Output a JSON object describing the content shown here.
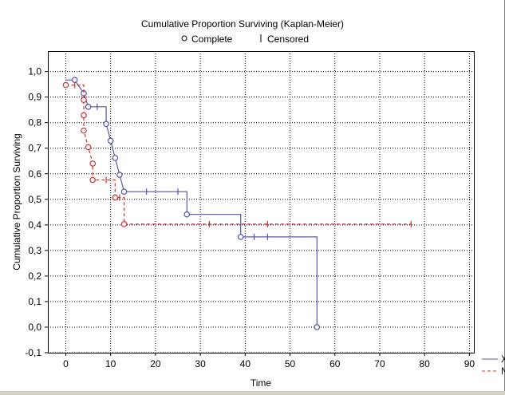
{
  "chart_data": {
    "type": "line",
    "title": "Cumulative Proportion Surviving (Kaplan-Meier)",
    "legend": [
      "Complete",
      "Censored"
    ],
    "xlabel": "Time",
    "ylabel": "Cumulative Proportion Surviving",
    "xlim": [
      -4,
      91
    ],
    "ylim": [
      -0.1,
      1.08
    ],
    "x_ticks": [
      0,
      10,
      20,
      30,
      40,
      50,
      60,
      70,
      80,
      90
    ],
    "y_ticks": [
      -0.1,
      0.0,
      0.1,
      0.2,
      0.3,
      0.4,
      0.5,
      0.6,
      0.7,
      0.8,
      0.9,
      1.0
    ],
    "x_tick_labels": [
      "0",
      "10",
      "20",
      "30",
      "40",
      "50",
      "60",
      "70",
      "80",
      "90"
    ],
    "y_tick_labels": [
      "-0,1",
      "0,0",
      "0,1",
      "0,2",
      "0,3",
      "0,4",
      "0,5",
      "0,6",
      "0,7",
      "0,8",
      "0,9",
      "1,0"
    ],
    "grid": true,
    "series": [
      {
        "color": "#5555aa",
        "dash": "none",
        "steps": [
          [
            0,
            0.967
          ],
          [
            2,
            0.967
          ],
          [
            4,
            0.915
          ],
          [
            5,
            0.862
          ],
          [
            9,
            0.862
          ],
          [
            9,
            0.795
          ],
          [
            10,
            0.729
          ],
          [
            11,
            0.662
          ],
          [
            12,
            0.596
          ],
          [
            13,
            0.53
          ],
          [
            27,
            0.53
          ],
          [
            27,
            0.441
          ],
          [
            39,
            0.441
          ],
          [
            39,
            0.353
          ],
          [
            56,
            0.353
          ],
          [
            56,
            0.0
          ]
        ],
        "complete": [
          [
            2,
            0.967
          ],
          [
            4,
            0.915
          ],
          [
            5,
            0.862
          ],
          [
            9,
            0.795
          ],
          [
            10,
            0.729
          ],
          [
            11,
            0.662
          ],
          [
            12,
            0.596
          ],
          [
            13,
            0.53
          ],
          [
            27,
            0.441
          ],
          [
            39,
            0.353
          ],
          [
            56,
            0.0
          ]
        ],
        "censored": [
          [
            7,
            0.862
          ],
          [
            18,
            0.53
          ],
          [
            25,
            0.53
          ],
          [
            42,
            0.353
          ],
          [
            45,
            0.353
          ]
        ]
      },
      {
        "color": "#cc3333",
        "dash": "4,3",
        "steps": [
          [
            0,
            0.947
          ],
          [
            4,
            0.947
          ],
          [
            4,
            0.889
          ],
          [
            4,
            0.829
          ],
          [
            4,
            0.769
          ],
          [
            5,
            0.704
          ],
          [
            6,
            0.64
          ],
          [
            6,
            0.576
          ],
          [
            11,
            0.576
          ],
          [
            11,
            0.507
          ],
          [
            13,
            0.507
          ],
          [
            13,
            0.403
          ],
          [
            77,
            0.403
          ]
        ],
        "complete": [
          [
            0,
            0.947
          ],
          [
            4,
            0.889
          ],
          [
            4,
            0.829
          ],
          [
            4,
            0.769
          ],
          [
            5,
            0.704
          ],
          [
            6,
            0.64
          ],
          [
            6,
            0.576
          ],
          [
            11,
            0.507
          ],
          [
            13,
            0.403
          ]
        ],
        "censored": [
          [
            2,
            0.947
          ],
          [
            9,
            0.576
          ],
          [
            12,
            0.507
          ],
          [
            32,
            0.403
          ],
          [
            45,
            0.403
          ],
          [
            77,
            0.403
          ]
        ]
      }
    ]
  },
  "legend_fragments": [
    "X",
    "N"
  ]
}
